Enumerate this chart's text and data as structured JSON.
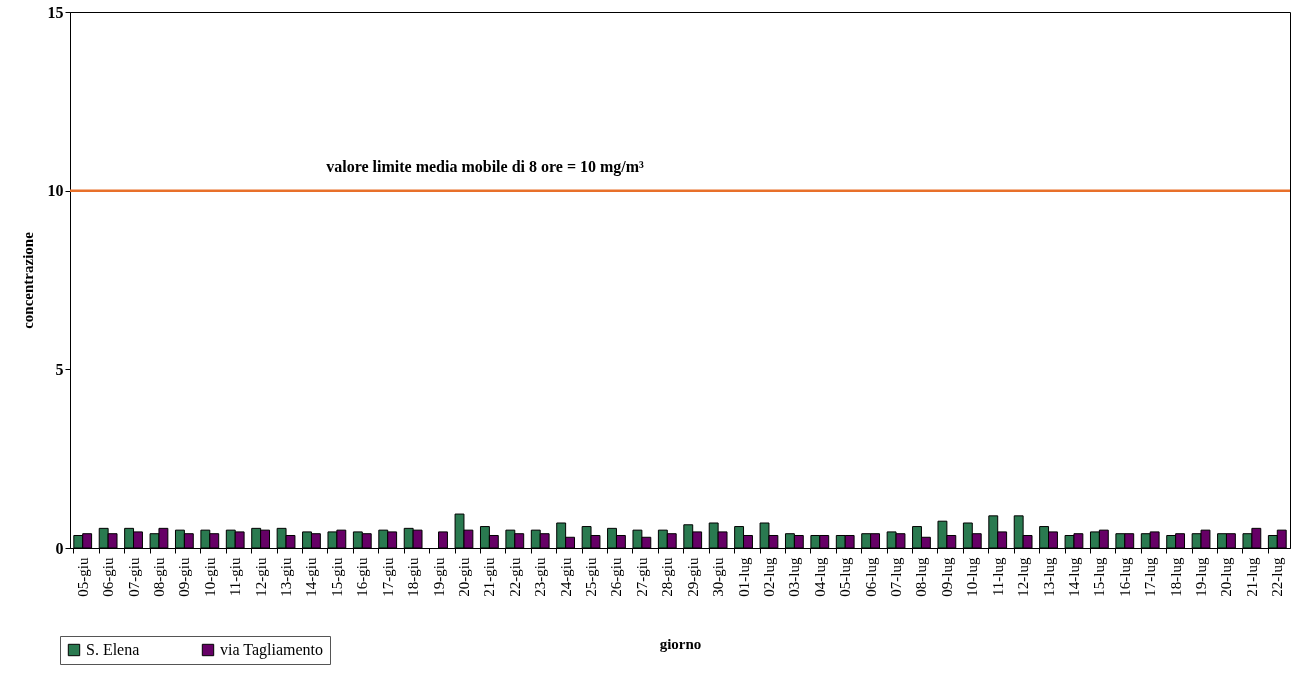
{
  "chart_data": {
    "type": "bar",
    "xlabel": "giorno",
    "ylabel": "concentrazione",
    "categories": [
      "05-giu",
      "06-giu",
      "07-giu",
      "08-giu",
      "09-giu",
      "10-giu",
      "11-giu",
      "12-giu",
      "13-giu",
      "14-giu",
      "15-giu",
      "16-giu",
      "17-giu",
      "18-giu",
      "19-giu",
      "20-giu",
      "21-giu",
      "22-giu",
      "23-giu",
      "24-giu",
      "25-giu",
      "26-giu",
      "27-giu",
      "28-giu",
      "29-giu",
      "30-giu",
      "01-lug",
      "02-lug",
      "03-lug",
      "04-lug",
      "05-lug",
      "06-lug",
      "07-lug",
      "08-lug",
      "09-lug",
      "10-lug",
      "11-lug",
      "12-lug",
      "13-lug",
      "14-lug",
      "15-lug",
      "16-lug",
      "17-lug",
      "18-lug",
      "19-lug",
      "20-lug",
      "21-lug",
      "22-lug"
    ],
    "series": [
      {
        "name": "S. Elena",
        "color": "#2a7a50",
        "values": [
          0.35,
          0.55,
          0.55,
          0.4,
          0.5,
          0.5,
          0.5,
          0.55,
          0.55,
          0.45,
          0.45,
          0.45,
          0.5,
          0.55,
          null,
          0.95,
          0.6,
          0.5,
          0.5,
          0.7,
          0.6,
          0.55,
          0.5,
          0.5,
          0.65,
          0.7,
          0.6,
          0.7,
          0.4,
          0.35,
          0.35,
          0.4,
          0.45,
          0.6,
          0.75,
          0.7,
          0.9,
          0.9,
          0.6,
          0.35,
          0.45,
          0.4,
          0.4,
          0.35,
          0.4,
          0.4,
          0.4,
          0.35
        ]
      },
      {
        "name": "via Tagliamento",
        "color": "#660066",
        "values": [
          0.4,
          0.4,
          0.45,
          0.55,
          0.4,
          0.4,
          0.45,
          0.5,
          0.35,
          0.4,
          0.5,
          0.4,
          0.45,
          0.5,
          0.45,
          0.5,
          0.35,
          0.4,
          0.4,
          0.3,
          0.35,
          0.35,
          0.3,
          0.4,
          0.45,
          0.45,
          0.35,
          0.35,
          0.35,
          0.35,
          0.35,
          0.4,
          0.4,
          0.3,
          0.35,
          0.4,
          0.45,
          0.35,
          0.45,
          0.4,
          0.5,
          0.4,
          0.45,
          0.4,
          0.5,
          0.4,
          0.55,
          0.5
        ]
      }
    ],
    "ylim": [
      0,
      15
    ],
    "yticks": [
      0,
      5,
      10,
      15
    ],
    "ref_lines": [
      {
        "axis": "y",
        "value": 10,
        "label": "valore limite media mobile di 8 ore = 10 mg/m³",
        "color": "#e8702a"
      }
    ],
    "legend": "bottom left"
  }
}
